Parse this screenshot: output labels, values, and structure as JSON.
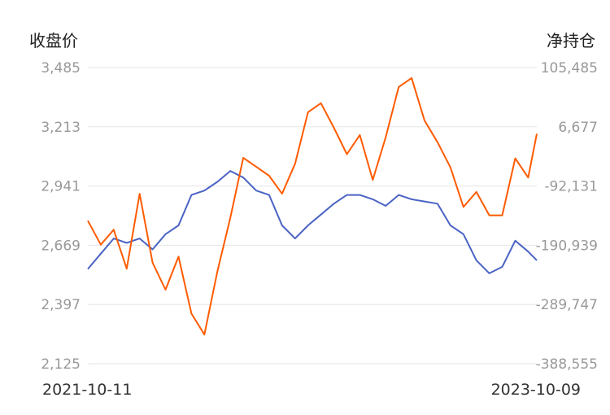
{
  "chart_data": {
    "type": "line",
    "left_axis": {
      "title": "收盘价",
      "ticks": [
        3485,
        3213,
        2941,
        2669,
        2397,
        2125
      ],
      "tick_labels": [
        "3,485",
        "3,213",
        "2,941",
        "2,669",
        "2,397",
        "2,125"
      ],
      "range": [
        2125,
        3485
      ]
    },
    "right_axis": {
      "title": "净持仓",
      "ticks": [
        105485,
        6677,
        -92131,
        -190939,
        -289747,
        -388555
      ],
      "tick_labels": [
        "105,485",
        "6,677",
        "-92,131",
        "-190,939",
        "-289,747",
        "-388,555"
      ],
      "range": [
        -388555,
        105485
      ]
    },
    "x_labels": {
      "start": "2021-10-11",
      "end": "2023-10-09"
    },
    "x_range": [
      "2021-10-11",
      "2023-10-09"
    ],
    "grid": true,
    "colors": {
      "close": "#4a63c4",
      "net_position": "#ff5b00",
      "grid": "#e6e6e6"
    },
    "series": [
      {
        "axis": "left",
        "color": "#4a63c4",
        "x": [
          "2021-10-11",
          "2021-11-01",
          "2021-11-22",
          "2021-12-13",
          "2022-01-03",
          "2022-01-24",
          "2022-02-14",
          "2022-03-07",
          "2022-03-28",
          "2022-04-18",
          "2022-05-09",
          "2022-05-30",
          "2022-06-20",
          "2022-07-11",
          "2022-08-01",
          "2022-08-22",
          "2022-09-12",
          "2022-10-03",
          "2022-10-24",
          "2022-11-14",
          "2022-12-05",
          "2022-12-26",
          "2023-01-16",
          "2023-02-06",
          "2023-02-27",
          "2023-03-20",
          "2023-04-10",
          "2023-05-01",
          "2023-05-22",
          "2023-06-12",
          "2023-07-03",
          "2023-07-24",
          "2023-08-14",
          "2023-09-04",
          "2023-09-25",
          "2023-10-09"
        ],
        "values": [
          2560,
          2630,
          2700,
          2680,
          2700,
          2650,
          2720,
          2760,
          2900,
          2920,
          2960,
          3010,
          2980,
          2920,
          2900,
          2760,
          2700,
          2760,
          2810,
          2860,
          2900,
          2900,
          2880,
          2850,
          2900,
          2880,
          2870,
          2860,
          2760,
          2720,
          2600,
          2540,
          2570,
          2690,
          2640,
          2600
        ]
      },
      {
        "axis": "right",
        "color": "#ff5b00",
        "x": [
          "2021-10-11",
          "2021-11-01",
          "2021-11-22",
          "2021-12-13",
          "2022-01-03",
          "2022-01-24",
          "2022-02-14",
          "2022-03-07",
          "2022-03-28",
          "2022-04-18",
          "2022-05-09",
          "2022-05-30",
          "2022-06-20",
          "2022-07-11",
          "2022-08-01",
          "2022-08-22",
          "2022-09-12",
          "2022-10-03",
          "2022-10-24",
          "2022-11-14",
          "2022-12-05",
          "2022-12-26",
          "2023-01-16",
          "2023-02-06",
          "2023-02-27",
          "2023-03-20",
          "2023-04-10",
          "2023-05-01",
          "2023-05-22",
          "2023-06-12",
          "2023-07-03",
          "2023-07-24",
          "2023-08-14",
          "2023-09-04",
          "2023-09-25",
          "2023-10-09"
        ],
        "values": [
          -150000,
          -190000,
          -165000,
          -230000,
          -105000,
          -220000,
          -265000,
          -210000,
          -305000,
          -340000,
          -235000,
          -145000,
          -45000,
          -60000,
          -75000,
          -105000,
          -55000,
          31000,
          46000,
          5000,
          -39000,
          -7000,
          -82000,
          -11000,
          73000,
          88000,
          17000,
          -19000,
          -61000,
          -127000,
          -102000,
          -141000,
          -141000,
          -46000,
          -78000,
          -5000
        ]
      }
    ]
  }
}
